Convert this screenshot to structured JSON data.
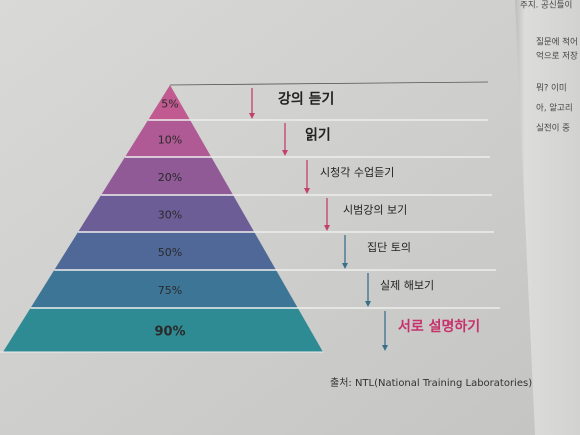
{
  "pyramid": {
    "levels": [
      {
        "percent": "5%",
        "label": "강의 듣기"
      },
      {
        "percent": "10%",
        "label": "읽기"
      },
      {
        "percent": "20%",
        "label": "시청각 수업듣기"
      },
      {
        "percent": "30%",
        "label": "시범강의 보기"
      },
      {
        "percent": "50%",
        "label": "집단 토의"
      },
      {
        "percent": "75%",
        "label": "실제 해보기"
      },
      {
        "percent": "90%",
        "label": "서로 설명하기"
      }
    ],
    "source": "출처: NTL(National Training Laboratories)"
  },
  "right_page": {
    "lines": [
      "주지. 공신들이",
      "질문에 적어",
      "억으로 저장",
      "뭐? 이미",
      "아, 알고리",
      "실전이 중"
    ]
  }
}
